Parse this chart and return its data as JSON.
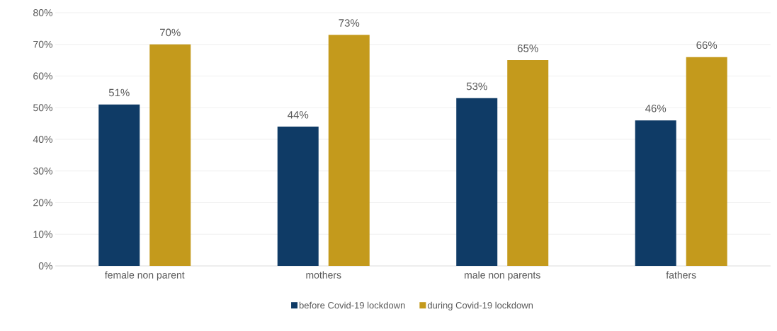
{
  "chart_data": {
    "type": "bar",
    "categories": [
      "female non parent",
      "mothers",
      "male non parents",
      "fathers"
    ],
    "series": [
      {
        "name": "before Covid-19 lockdown",
        "color": "#0f3b66",
        "values": [
          51,
          44,
          53,
          46
        ],
        "value_labels": [
          "51%",
          "44%",
          "53%",
          "46%"
        ]
      },
      {
        "name": "during Covid-19 lockdown",
        "color": "#c49a1c",
        "values": [
          70,
          73,
          65,
          66
        ],
        "value_labels": [
          "70%",
          "73%",
          "65%",
          "66%"
        ]
      }
    ],
    "ylim": [
      0,
      80
    ],
    "yticks": [
      {
        "value": 0,
        "label": "0%"
      },
      {
        "value": 10,
        "label": "10%"
      },
      {
        "value": 20,
        "label": "20%"
      },
      {
        "value": 30,
        "label": "30%"
      },
      {
        "value": 40,
        "label": "40%"
      },
      {
        "value": 50,
        "label": "50%"
      },
      {
        "value": 60,
        "label": "60%"
      },
      {
        "value": 70,
        "label": "70%"
      },
      {
        "value": 80,
        "label": "80%"
      }
    ],
    "grid": "y",
    "legend": "bottom"
  }
}
